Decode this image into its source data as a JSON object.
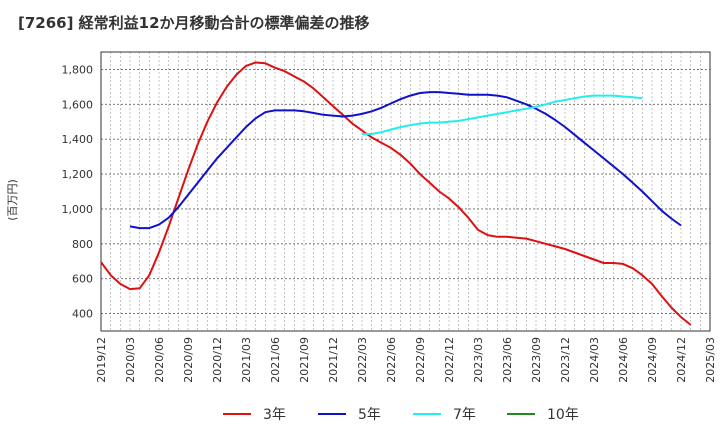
{
  "chart_data": {
    "type": "line",
    "title": "[7266]  経常利益12か月移動合計の標準偏差の推移",
    "ylabel": "(百万円)",
    "xlabel": "",
    "ylim": [
      300,
      1900
    ],
    "yticks": [
      400,
      600,
      800,
      1000,
      1200,
      1400,
      1600,
      1800
    ],
    "ytick_labels": [
      "400",
      "600",
      "800",
      "1,000",
      "1,200",
      "1,400",
      "1,600",
      "1,800"
    ],
    "xticks": [
      "2019/12",
      "2020/03",
      "2020/06",
      "2020/09",
      "2020/12",
      "2021/03",
      "2021/06",
      "2021/09",
      "2021/12",
      "2022/03",
      "2022/06",
      "2022/09",
      "2022/12",
      "2023/03",
      "2023/06",
      "2023/09",
      "2023/12",
      "2024/03",
      "2024/06",
      "2024/09",
      "2024/12",
      "2025/03"
    ],
    "grid": true,
    "legend_position": "bottom",
    "series": [
      {
        "name": "3年",
        "color": "#dd1111",
        "start": "2019/12",
        "values": [
          695,
          620,
          570,
          540,
          545,
          620,
          750,
          900,
          1060,
          1220,
          1370,
          1500,
          1610,
          1700,
          1770,
          1820,
          1840,
          1835,
          1810,
          1790,
          1760,
          1730,
          1690,
          1640,
          1590,
          1540,
          1490,
          1450,
          1410,
          1380,
          1350,
          1310,
          1260,
          1200,
          1150,
          1100,
          1060,
          1010,
          950,
          880,
          850,
          840,
          840,
          835,
          830,
          815,
          800,
          785,
          770,
          750,
          730,
          710,
          690,
          690,
          685,
          660,
          620,
          570,
          500,
          435,
          380,
          335
        ]
      },
      {
        "name": "5年",
        "color": "#1111cc",
        "start": "2020/03",
        "values": [
          900,
          890,
          890,
          910,
          950,
          1010,
          1080,
          1150,
          1220,
          1290,
          1350,
          1410,
          1470,
          1520,
          1555,
          1565,
          1565,
          1565,
          1560,
          1550,
          1540,
          1535,
          1530,
          1535,
          1545,
          1560,
          1580,
          1605,
          1630,
          1650,
          1665,
          1670,
          1670,
          1665,
          1660,
          1655,
          1655,
          1655,
          1650,
          1640,
          1620,
          1600,
          1575,
          1545,
          1510,
          1470,
          1425,
          1380,
          1335,
          1290,
          1245,
          1200,
          1150,
          1100,
          1045,
          990,
          945,
          905
        ]
      },
      {
        "name": "7年",
        "color": "#22eeee",
        "start": "2022/03",
        "values": [
          1430,
          1430,
          1440,
          1455,
          1470,
          1480,
          1490,
          1495,
          1495,
          1500,
          1505,
          1515,
          1525,
          1535,
          1545,
          1555,
          1565,
          1575,
          1585,
          1600,
          1615,
          1625,
          1635,
          1645,
          1650,
          1650,
          1650,
          1645,
          1640,
          1635
        ]
      },
      {
        "name": "10年",
        "color": "#228822",
        "start": "2024/12",
        "values": []
      }
    ]
  }
}
